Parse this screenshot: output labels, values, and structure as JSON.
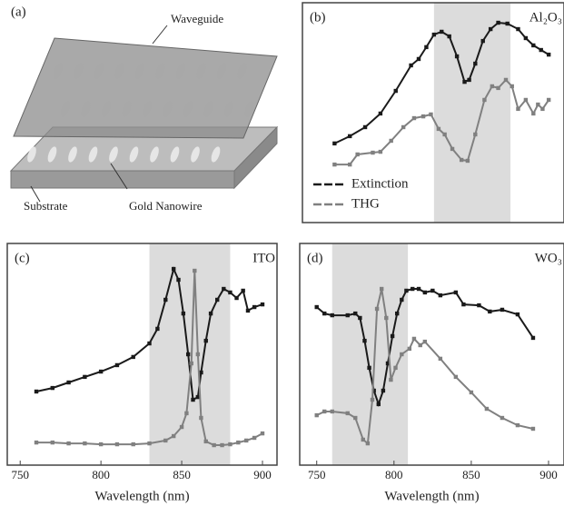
{
  "panel_a": {
    "label": "(a)",
    "waveguide": "Waveguide",
    "substrate": "Substrate",
    "nanowire": "Gold Nanowire"
  },
  "chart_data": [
    {
      "type": "line",
      "label": "(b)",
      "annotation": "Al₂O₃",
      "xlim": [
        739,
        910
      ],
      "ylim": [
        0,
        100
      ],
      "highlight": [
        825,
        875
      ],
      "legend": "lower left",
      "series": [
        {
          "name": "Extinction",
          "color": "#1a1a1a",
          "x": [
            760,
            770,
            780,
            790,
            800,
            810,
            815,
            820,
            825,
            830,
            835,
            840,
            845,
            848,
            852,
            857,
            862,
            867,
            873,
            880,
            885,
            890,
            895,
            900
          ],
          "values": [
            36,
            39.3,
            43.4,
            49.6,
            59.9,
            71.5,
            74.4,
            79.8,
            85.5,
            86.8,
            84.7,
            75.6,
            64,
            64.9,
            72.3,
            82.6,
            88,
            90.9,
            90.5,
            88,
            83.9,
            80.6,
            78.5,
            76.4
          ]
        },
        {
          "name": "THG",
          "color": "#808080",
          "x": [
            760,
            770,
            775,
            785,
            790,
            797,
            805,
            812,
            818,
            823,
            828,
            832,
            837,
            843,
            847,
            852,
            858,
            863,
            867,
            872,
            876,
            880,
            885,
            890,
            893,
            896,
            900
          ],
          "values": [
            26.4,
            26.4,
            31,
            31.8,
            32.2,
            37.2,
            43.4,
            47.5,
            48.3,
            49.2,
            42.6,
            40.1,
            33.5,
            28.5,
            28.1,
            40.1,
            55.8,
            62,
            61.2,
            64.9,
            62,
            51.7,
            55.8,
            49.6,
            53.7,
            51.7,
            55.8
          ]
        }
      ]
    },
    {
      "type": "line",
      "label": "(c)",
      "annotation": "ITO",
      "xlim": [
        742,
        909
      ],
      "ylim": [
        0,
        100
      ],
      "highlight": [
        830,
        880
      ],
      "xticks": [
        750,
        800,
        850,
        900
      ],
      "xlabel": "Wavelength (nm)",
      "series": [
        {
          "color": "#1a1a1a",
          "x": [
            760,
            770,
            780,
            790,
            800,
            810,
            820,
            830,
            835,
            840,
            845,
            848,
            851,
            854,
            857,
            860,
            862,
            865,
            868,
            872,
            876,
            880,
            884,
            888,
            891,
            895,
            900
          ],
          "values": [
            33.2,
            34.8,
            37.3,
            39.8,
            42.2,
            45.1,
            48.8,
            54.9,
            61.5,
            74.6,
            88.5,
            83.6,
            68.4,
            50,
            29.5,
            30.7,
            41.8,
            56.1,
            68.4,
            74.6,
            79.5,
            77.9,
            75.4,
            78.7,
            69.7,
            71.3,
            72.5
          ]
        },
        {
          "color": "#808080",
          "x": [
            760,
            770,
            780,
            790,
            800,
            810,
            820,
            830,
            840,
            845,
            850,
            853,
            856,
            858,
            860,
            862,
            865,
            870,
            875,
            880,
            885,
            890,
            895,
            900
          ],
          "values": [
            10.2,
            10.2,
            9.8,
            9.8,
            9.4,
            9.4,
            9.4,
            9.8,
            11.1,
            13.1,
            17.2,
            23.4,
            45.9,
            87.7,
            50,
            21.3,
            10.7,
            9,
            9,
            9.4,
            10.2,
            11.1,
            12.3,
            14.3
          ]
        }
      ]
    },
    {
      "type": "line",
      "label": "(d)",
      "annotation": "WO₃",
      "xlim": [
        739,
        910
      ],
      "ylim": [
        0,
        100
      ],
      "highlight": [
        760,
        809
      ],
      "xticks": [
        750,
        800,
        850,
        900
      ],
      "xlabel": "Wavelength (nm)",
      "series": [
        {
          "color": "#1a1a1a",
          "x": [
            750,
            755,
            760,
            770,
            775,
            778,
            781,
            784,
            787,
            790,
            793,
            796,
            799,
            802,
            805,
            808,
            812,
            816,
            820,
            825,
            830,
            840,
            845,
            855,
            862,
            870,
            880,
            890
          ],
          "values": [
            71.3,
            68.4,
            67.6,
            67.6,
            68.4,
            66.4,
            56.1,
            43.9,
            33.6,
            27.5,
            33.6,
            45.9,
            58.2,
            68.4,
            74.6,
            78.7,
            79.5,
            79.5,
            77.9,
            78.7,
            76.6,
            77.9,
            72.5,
            72.1,
            69.3,
            70.1,
            68,
            57.4
          ]
        },
        {
          "color": "#808080",
          "x": [
            750,
            755,
            760,
            770,
            775,
            780,
            783,
            786,
            789,
            792,
            795,
            798,
            801,
            805,
            810,
            813,
            817,
            820,
            830,
            840,
            850,
            860,
            870,
            880,
            890
          ],
          "values": [
            22.5,
            24.2,
            24.2,
            23.4,
            21.3,
            11.5,
            9.8,
            29.5,
            70.5,
            79.5,
            66.4,
            38.5,
            43.9,
            50,
            52.5,
            57,
            54.1,
            55.7,
            48,
            39.8,
            32.8,
            25.4,
            21.3,
            18,
            16.4
          ]
        }
      ]
    }
  ]
}
